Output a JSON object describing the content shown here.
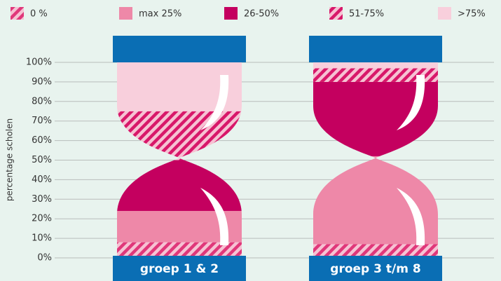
{
  "chart_data": {
    "type": "hourglass-stacked",
    "y_label": "percentage scholen",
    "categories": [
      "groep 1 & 2",
      "groep 3 t/m 8"
    ],
    "series": [
      {
        "name": "0 %",
        "color": "#e0377a",
        "hatch": true,
        "values": [
          8,
          7
        ]
      },
      {
        "name": "max 25%",
        "color": "#ee88a8",
        "hatch": false,
        "values": [
          16,
          45
        ]
      },
      {
        "name": "26-50%",
        "color": "#c4005f",
        "hatch": false,
        "values": [
          26,
          38
        ]
      },
      {
        "name": "51-75%",
        "color": "#d8186a",
        "hatch": true,
        "values": [
          25,
          7
        ]
      },
      {
        "name": ">75%",
        "color": "#f8cfdc",
        "hatch": false,
        "values": [
          25,
          3
        ]
      }
    ],
    "ylim": [
      0,
      100
    ],
    "yticks": [
      {
        "value": 0,
        "label": "0%"
      },
      {
        "value": 10,
        "label": "10%"
      },
      {
        "value": 20,
        "label": "20%"
      },
      {
        "value": 30,
        "label": "30%"
      },
      {
        "value": 40,
        "label": "40%"
      },
      {
        "value": 50,
        "label": "50%"
      },
      {
        "value": 60,
        "label": "60%"
      },
      {
        "value": 70,
        "label": "70%"
      },
      {
        "value": 80,
        "label": "80%"
      },
      {
        "value": 90,
        "label": "90%"
      },
      {
        "value": 100,
        "label": "100%"
      }
    ],
    "grid": true
  }
}
